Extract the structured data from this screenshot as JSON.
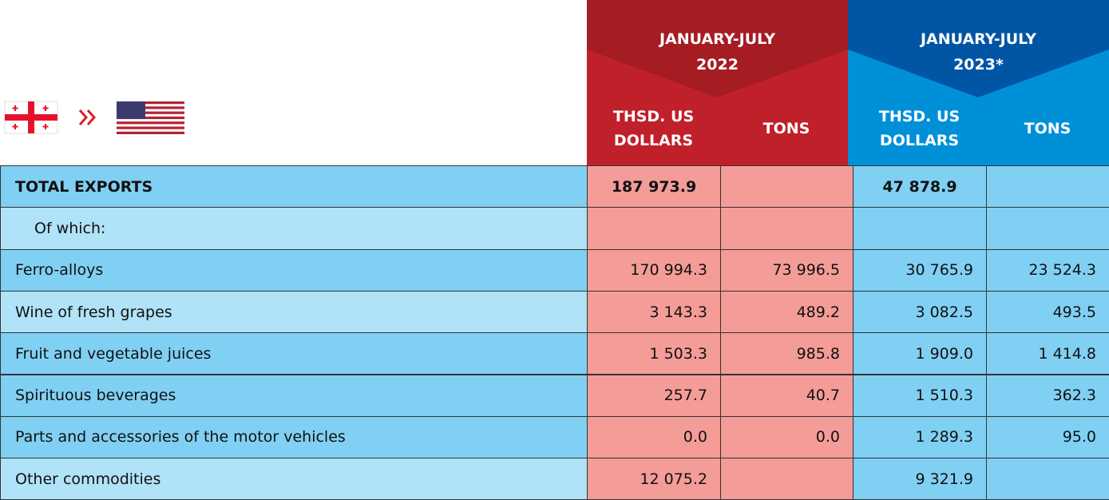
{
  "header": {
    "periods": [
      {
        "period": "JANUARY-JULY",
        "year": "2022",
        "columns": [
          "THSD. US DOLLARS",
          "TONS"
        ]
      },
      {
        "period": "JANUARY-JULY",
        "year": "2023*",
        "columns": [
          "THSD. US DOLLARS",
          "TONS"
        ]
      }
    ]
  },
  "table": {
    "rows": [
      {
        "label": "TOTAL EXPORTS",
        "values": [
          "187 973.9",
          null,
          "47 878.9",
          null
        ]
      },
      {
        "label": "Of which:",
        "values": [
          null,
          null,
          null,
          null
        ]
      },
      {
        "label": "Ferro-alloys",
        "values": [
          "170 994.3",
          "73 996.5",
          "30 765.9",
          "23 524.3"
        ]
      },
      {
        "label": "Wine of fresh grapes",
        "values": [
          "3 143.3",
          "489.2",
          "3 082.5",
          "493.5"
        ]
      },
      {
        "label": "Fruit and vegetable juices",
        "values": [
          "1 503.3",
          "985.8",
          "1 909.0",
          "1 414.8"
        ]
      },
      {
        "label": "Spirituous beverages",
        "values": [
          "257.7",
          "40.7",
          "1 510.3",
          "362.3"
        ]
      },
      {
        "label": "Parts and accessories of the motor vehicles",
        "values": [
          "0.0",
          "0.0",
          "1 289.3",
          "95.0"
        ]
      },
      {
        "label": "Other commodities",
        "values": [
          "12 075.2",
          null,
          "9 321.9",
          null
        ]
      }
    ]
  }
}
